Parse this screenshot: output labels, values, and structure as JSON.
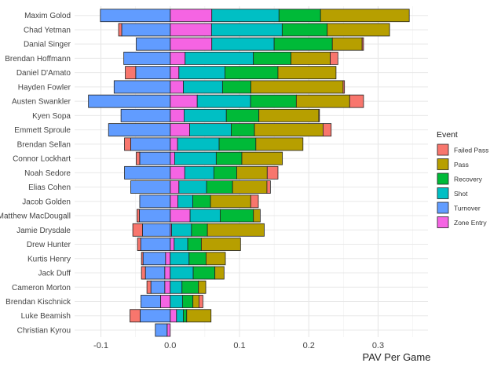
{
  "chart_data": {
    "type": "bar",
    "orientation": "horizontal",
    "stacked": true,
    "xlabel": "PAV Per Game",
    "ylabel": "",
    "xlim": [
      -0.138,
      0.372
    ],
    "xticks": [
      -0.1,
      0.0,
      0.1,
      0.2,
      0.3
    ],
    "xtick_labels": [
      "-0.1",
      "0.0",
      "0.1",
      "0.2",
      "0.3"
    ],
    "grid": true,
    "legend": {
      "title": "Event",
      "position": "right"
    },
    "categories": [
      "Maxim Golod",
      "Chad Yetman",
      "Danial Singer",
      "Brendan Hoffmann",
      "Daniel D'Amato",
      "Hayden Fowler",
      "Austen Swankler",
      "Kyen Sopa",
      "Emmett Sproule",
      "Brendan Sellan",
      "Connor Lockhart",
      "Noah Sedore",
      "Elias Cohen",
      "Jacob Golden",
      "Matthew MacDougall",
      "Jamie Drysdale",
      "Drew Hunter",
      "Kurtis Henry",
      "Jack Duff",
      "Cameron Morton",
      "Brendan Kischnick",
      "Luke Beamish",
      "Christian Kyrou"
    ],
    "series": [
      {
        "name": "Failed Pass",
        "color": "#F8766D",
        "values": [
          0,
          -0.0045,
          0.002,
          0.011,
          -0.015,
          0.002,
          0.02,
          0.001,
          0.0117,
          -0.009,
          -0.005,
          0.0155,
          0.005,
          0.011,
          -0.0035,
          -0.014,
          -0.0046,
          -0.0023,
          -0.0057,
          -0.0057,
          0.0057,
          -0.0147,
          0
        ]
      },
      {
        "name": "Pass",
        "color": "#B79F00",
        "values": [
          0.128,
          0.09,
          0.043,
          0.0566,
          0.0838,
          0.133,
          0.077,
          0.0864,
          0.099,
          0.068,
          0.0585,
          0.044,
          0.0496,
          0.058,
          0.0098,
          0.082,
          0.0566,
          0.0279,
          0.0132,
          0.0105,
          0.0087,
          0.0351,
          0
        ]
      },
      {
        "name": "Recovery",
        "color": "#00BA38",
        "values": [
          0.06,
          0.065,
          0.084,
          0.0544,
          0.0765,
          0.041,
          0.066,
          0.047,
          0.0336,
          0.053,
          0.037,
          0.033,
          0.0375,
          0.0256,
          0.048,
          0.023,
          0.0196,
          0.0245,
          0.0313,
          0.0238,
          0.0151,
          0.0049,
          0
        ]
      },
      {
        "name": "Shot",
        "color": "#00BFC4",
        "values": [
          0.097,
          0.102,
          0.09,
          0.0985,
          0.0665,
          0.0565,
          0.077,
          0.061,
          0.06,
          0.06,
          0.06,
          0.042,
          0.04,
          0.0216,
          0.0434,
          0.0287,
          0.0196,
          0.0272,
          0.0332,
          0.017,
          0.0177,
          0.0098,
          0
        ]
      },
      {
        "name": "Turnover",
        "color": "#619CFF",
        "values": [
          -0.1008,
          -0.07,
          -0.049,
          -0.067,
          -0.0498,
          -0.081,
          -0.118,
          -0.071,
          -0.089,
          -0.057,
          -0.044,
          -0.066,
          -0.057,
          -0.044,
          -0.0445,
          -0.04,
          -0.0426,
          -0.0324,
          -0.0279,
          -0.02,
          -0.0283,
          -0.0434,
          -0.017
        ]
      },
      {
        "name": "Zone Entry",
        "color": "#F564E3",
        "values": [
          0.06,
          0.0596,
          0.06,
          0.0215,
          0.0125,
          0.019,
          0.039,
          0.02,
          0.028,
          0.0106,
          0.0064,
          0.021,
          0.0125,
          0.011,
          0.0287,
          0.002,
          0.0057,
          -0.0068,
          -0.0079,
          -0.0079,
          -0.014,
          0.0091,
          -0.0045
        ]
      }
    ]
  }
}
